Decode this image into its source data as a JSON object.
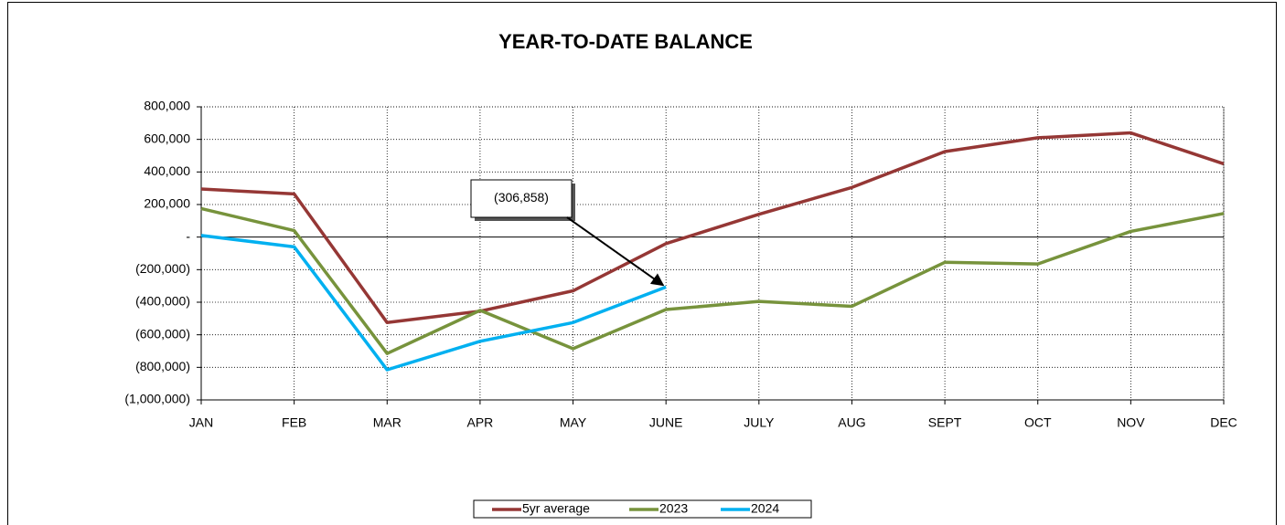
{
  "chart_data": {
    "type": "line",
    "title": "YEAR-TO-DATE BALANCE",
    "categories": [
      "JAN",
      "FEB",
      "MAR",
      "APR",
      "MAY",
      "JUNE",
      "JULY",
      "AUG",
      "SEPT",
      "OCT",
      "NOV",
      "DEC"
    ],
    "series": [
      {
        "name": "5yr average",
        "color": "#953735",
        "values": [
          295000,
          265000,
          -525000,
          -455000,
          -330000,
          -40000,
          140000,
          305000,
          525000,
          610000,
          640000,
          450000
        ]
      },
      {
        "name": "2023",
        "color": "#77933c",
        "values": [
          175000,
          40000,
          -715000,
          -450000,
          -685000,
          -445000,
          -395000,
          -425000,
          -155000,
          -165000,
          35000,
          145000
        ]
      },
      {
        "name": "2024",
        "color": "#00b0f0",
        "values": [
          10000,
          -60000,
          -815000,
          -640000,
          -525000,
          -306858,
          null,
          null,
          null,
          null,
          null,
          null
        ]
      }
    ],
    "ylim": [
      -1000000,
      800000
    ],
    "yticks": [
      {
        "value": -1000000,
        "label": "(1,000,000)"
      },
      {
        "value": -800000,
        "label": "(800,000)"
      },
      {
        "value": -600000,
        "label": "(600,000)"
      },
      {
        "value": -400000,
        "label": "(400,000)"
      },
      {
        "value": -200000,
        "label": "(200,000)"
      },
      {
        "value": 0,
        "label": "-"
      },
      {
        "value": 200000,
        "label": "200,000"
      },
      {
        "value": 400000,
        "label": "400,000"
      },
      {
        "value": 600000,
        "label": "600,000"
      },
      {
        "value": 800000,
        "label": "800,000"
      }
    ],
    "grid": true,
    "legend": "bottom",
    "annotation": {
      "text": "(306,858)",
      "series": 2,
      "index": 5
    }
  }
}
